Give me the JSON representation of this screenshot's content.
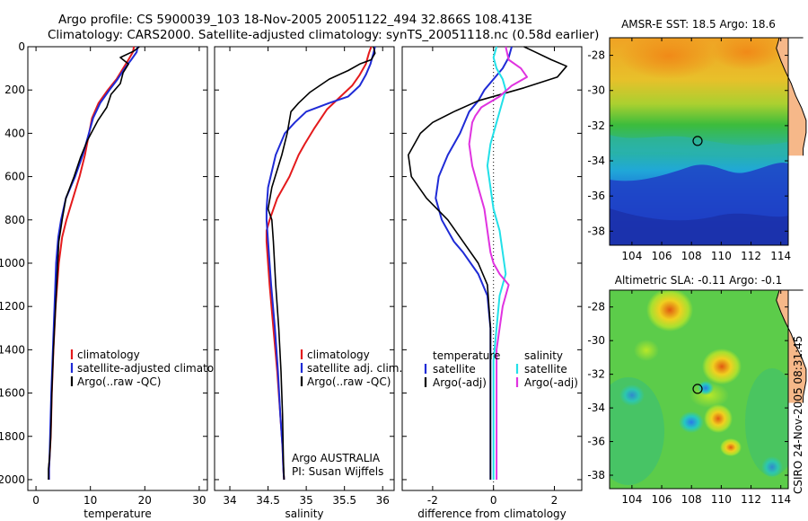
{
  "header": {
    "line1": "Argo profile: CS 5900039_103 18-Nov-2005 20051122_494 32.866S 108.413E",
    "line2": "Climatology: CARS2000. Satellite-adjusted climatology: synTS_20051118.nc (0.58d earlier)"
  },
  "credit": "CSIRO 24-Nov-2005 08:31:45",
  "colors": {
    "climatology": "#e41a1c",
    "satellite": "#1f2bd6",
    "argo": "#000000",
    "sat_salinity": "#22e0e8",
    "argo_salinity": "#e033e0",
    "land": "#f6b889"
  },
  "chart_data": [
    {
      "type": "line",
      "id": "temperature",
      "xlabel": "temperature",
      "ylabel": "",
      "xlim": [
        -1.5,
        31.5
      ],
      "ylim": [
        2050,
        0
      ],
      "xticks": [
        0,
        10,
        20,
        30
      ],
      "yticks": [
        0,
        200,
        400,
        600,
        800,
        1000,
        1200,
        1400,
        1600,
        1800,
        2000
      ],
      "legend": [
        "climatology",
        "satellite-adjusted climatology",
        "Argo(..raw -QC)"
      ],
      "series": [
        {
          "name": "climatology",
          "color": "#e41a1c",
          "x": [
            18.0,
            17.8,
            17.0,
            16.0,
            14.8,
            13.2,
            11.5,
            10.3,
            9.6,
            9.0,
            8.0,
            6.8,
            5.6,
            4.8,
            4.2,
            3.6,
            3.2,
            2.9,
            2.7,
            2.5,
            2.4,
            2.4
          ],
          "y": [
            0,
            25,
            60,
            100,
            150,
            200,
            260,
            330,
            420,
            500,
            600,
            700,
            800,
            880,
            1000,
            1200,
            1400,
            1600,
            1800,
            1900,
            1950,
            2000
          ]
        },
        {
          "name": "satellite-adjusted climatology",
          "color": "#1f2bd6",
          "x": [
            18.7,
            18.5,
            17.5,
            16.3,
            15.0,
            13.5,
            11.8,
            10.5,
            9.5,
            8.6,
            7.2,
            5.5,
            4.6,
            4.1,
            3.7,
            3.4,
            3.1,
            2.8,
            2.6,
            2.5,
            2.4,
            2.4
          ],
          "y": [
            0,
            25,
            60,
            100,
            150,
            200,
            260,
            330,
            420,
            500,
            600,
            700,
            800,
            880,
            1000,
            1200,
            1400,
            1600,
            1800,
            1900,
            1950,
            2000
          ]
        },
        {
          "name": "Argo(..raw -QC)",
          "color": "#000000",
          "x": [
            19.0,
            18.0,
            15.5,
            17.0,
            16.0,
            15.5,
            13.8,
            13.0,
            11.4,
            9.5,
            8.2,
            7.0,
            5.5,
            4.8,
            4.5,
            4.2,
            4.0,
            3.6,
            3.2,
            2.9,
            2.7,
            2.5,
            2.3,
            2.3
          ],
          "y": [
            0,
            20,
            50,
            80,
            120,
            170,
            220,
            280,
            340,
            430,
            510,
            600,
            700,
            800,
            850,
            900,
            1000,
            1200,
            1400,
            1600,
            1800,
            1900,
            1950,
            2000
          ]
        }
      ]
    },
    {
      "type": "line",
      "id": "salinity",
      "xlabel": "salinity",
      "ylabel": "",
      "xlim": [
        33.8,
        36.15
      ],
      "ylim": [
        2050,
        0
      ],
      "xticks": [
        34,
        34.5,
        35,
        35.5,
        36
      ],
      "xticklabels": [
        "34",
        "34.5",
        "35",
        "35.5",
        "36"
      ],
      "legend": [
        "climatology",
        "satellite adj. clim.",
        "Argo(..raw -QC)"
      ],
      "annotation": [
        "Argo AUSTRALIA",
        "PI: Susan Wijffels"
      ],
      "series": [
        {
          "name": "climatology",
          "color": "#e41a1c",
          "x": [
            35.85,
            35.82,
            35.78,
            35.7,
            35.6,
            35.45,
            35.27,
            35.1,
            34.98,
            34.9,
            34.78,
            34.62,
            34.52,
            34.48,
            34.48,
            34.52,
            34.57,
            34.62,
            34.66,
            34.69,
            34.7,
            34.71
          ],
          "y": [
            0,
            30,
            80,
            130,
            180,
            230,
            290,
            380,
            450,
            500,
            600,
            700,
            800,
            850,
            900,
            1100,
            1300,
            1500,
            1700,
            1850,
            1950,
            2000
          ]
        },
        {
          "name": "satellite adj. clim.",
          "color": "#1f2bd6",
          "x": [
            35.9,
            35.88,
            35.84,
            35.78,
            35.7,
            35.55,
            35.3,
            35.0,
            34.85,
            34.72,
            34.6,
            34.5,
            34.48,
            34.48,
            34.5,
            34.54,
            34.59,
            34.63,
            34.66,
            34.69,
            34.7,
            34.71
          ],
          "y": [
            0,
            30,
            80,
            130,
            180,
            230,
            260,
            300,
            350,
            400,
            500,
            650,
            750,
            800,
            900,
            1100,
            1300,
            1500,
            1700,
            1850,
            1950,
            2000
          ]
        },
        {
          "name": "Argo(..raw -QC)",
          "color": "#000000",
          "x": [
            35.88,
            35.9,
            35.85,
            35.7,
            35.55,
            35.3,
            35.05,
            34.9,
            34.8,
            34.75,
            34.68,
            34.55,
            34.5,
            34.55,
            34.57,
            34.6,
            34.64,
            34.67,
            34.69,
            34.7,
            34.71
          ],
          "y": [
            0,
            30,
            60,
            80,
            110,
            150,
            210,
            260,
            300,
            400,
            500,
            650,
            750,
            800,
            900,
            1100,
            1300,
            1500,
            1700,
            1900,
            2000
          ]
        }
      ]
    },
    {
      "type": "line",
      "id": "difference",
      "xlabel": "difference from climatology",
      "ylabel": "",
      "xlim": [
        -3.0,
        2.9
      ],
      "ylim": [
        2050,
        0
      ],
      "xticks": [
        -2,
        0,
        2
      ],
      "xticklabels": [
        "-2",
        "0",
        "2"
      ],
      "legend_groups": [
        {
          "title": "temperature",
          "items": [
            "satellite",
            "Argo(-adj)"
          ]
        },
        {
          "title": "salinity",
          "items": [
            "satellite",
            "Argo(-adj)"
          ]
        }
      ],
      "series": [
        {
          "name": "temperature satellite",
          "color": "#1f2bd6",
          "x": [
            0.6,
            0.5,
            0.3,
            0.0,
            -0.3,
            -0.5,
            -0.8,
            -1.1,
            -1.5,
            -1.8,
            -1.9,
            -1.7,
            -1.5,
            -1.3,
            -1.0,
            -0.5,
            -0.2,
            -0.1,
            -0.1,
            -0.1,
            -0.1,
            -0.1
          ],
          "y": [
            0,
            50,
            100,
            150,
            200,
            250,
            300,
            400,
            500,
            600,
            700,
            800,
            850,
            900,
            950,
            1050,
            1150,
            1300,
            1500,
            1700,
            1900,
            2000
          ]
        },
        {
          "name": "temperature Argo(-adj)",
          "color": "#000000",
          "x": [
            1.0,
            1.3,
            1.9,
            2.4,
            2.1,
            1.0,
            -0.5,
            -1.3,
            -2.0,
            -2.4,
            -2.8,
            -2.7,
            -2.2,
            -1.5,
            -1.0,
            -0.5,
            -0.2,
            -0.1,
            -0.1,
            -0.1,
            -0.1
          ],
          "y": [
            0,
            20,
            60,
            90,
            140,
            190,
            250,
            300,
            350,
            400,
            500,
            600,
            700,
            800,
            900,
            1000,
            1100,
            1300,
            1500,
            1800,
            2000
          ]
        },
        {
          "name": "salinity satellite",
          "color": "#22e0e8",
          "x": [
            0.1,
            0.0,
            0.1,
            0.3,
            0.4,
            0.3,
            0.1,
            -0.1,
            -0.2,
            -0.1,
            0.0,
            0.2,
            0.3,
            0.4,
            0.2,
            0.1,
            0.0,
            0.0,
            0.0,
            0.0,
            0.0
          ],
          "y": [
            0,
            50,
            100,
            150,
            200,
            250,
            350,
            450,
            550,
            650,
            750,
            850,
            950,
            1050,
            1150,
            1300,
            1450,
            1600,
            1750,
            1900,
            2000
          ]
        },
        {
          "name": "salinity Argo(-adj)",
          "color": "#e033e0",
          "x": [
            0.4,
            0.5,
            0.9,
            1.1,
            0.6,
            0.2,
            -0.4,
            -0.6,
            -0.7,
            -0.8,
            -0.7,
            -0.5,
            -0.3,
            -0.2,
            -0.1,
            0.0,
            0.2,
            0.5,
            0.3,
            0.1,
            0.1,
            0.1,
            0.1
          ],
          "y": [
            0,
            60,
            100,
            140,
            180,
            230,
            280,
            320,
            350,
            450,
            550,
            650,
            750,
            850,
            950,
            1000,
            1050,
            1100,
            1200,
            1400,
            1600,
            1800,
            2000
          ]
        }
      ]
    },
    {
      "type": "heatmap",
      "id": "sst-map",
      "title": "AMSR-E SST: 18.5 Argo: 18.6",
      "xlim": [
        102.5,
        114.5
      ],
      "ylim": [
        -38.8,
        -27.0
      ],
      "xticks": [
        104,
        106,
        108,
        110,
        112,
        114
      ],
      "yticks": [
        -28,
        -30,
        -32,
        -34,
        -36,
        -38
      ],
      "marker": {
        "lon": 108.41,
        "lat": -32.87
      }
    },
    {
      "type": "heatmap",
      "id": "sla-map",
      "title": "Altimetric SLA: -0.11 Argo: -0.1",
      "xlim": [
        102.5,
        114.5
      ],
      "ylim": [
        -38.8,
        -27.0
      ],
      "xticks": [
        104,
        106,
        108,
        110,
        112,
        114
      ],
      "yticks": [
        -28,
        -30,
        -32,
        -34,
        -36,
        -38
      ],
      "marker": {
        "lon": 108.41,
        "lat": -32.87
      }
    }
  ]
}
